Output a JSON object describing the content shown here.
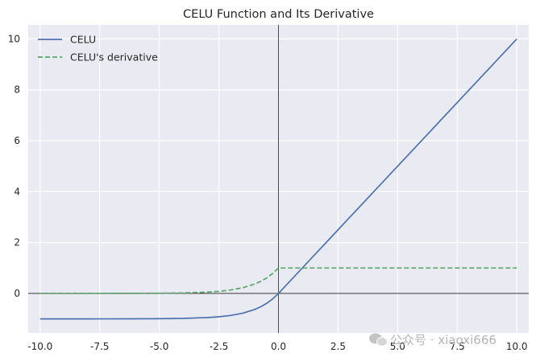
{
  "chart_data": {
    "type": "line",
    "title": "CELU Function and Its Derivative",
    "xlabel": "",
    "ylabel": "",
    "xlim": [
      -10.5,
      10.5
    ],
    "ylim": [
      -1.55,
      10.55
    ],
    "x_ticks": [
      -10.0,
      -7.5,
      -5.0,
      -2.5,
      0.0,
      2.5,
      5.0,
      7.5,
      10.0
    ],
    "x_tick_labels": [
      "-10.0",
      "-7.5",
      "-5.0",
      "-2.5",
      "0.0",
      "2.5",
      "5.0",
      "7.5",
      "10.0"
    ],
    "y_ticks": [
      0,
      2,
      4,
      6,
      8,
      10
    ],
    "y_tick_labels": [
      "0",
      "2",
      "4",
      "6",
      "8",
      "10"
    ],
    "grid": true,
    "axhline": 0,
    "axvline": 0,
    "legend_position": "top-left",
    "x": [
      -10,
      -9,
      -8,
      -7,
      -6,
      -5,
      -4,
      -3,
      -2.5,
      -2,
      -1.5,
      -1,
      -0.75,
      -0.5,
      -0.25,
      0,
      1,
      2,
      3,
      4,
      5,
      6,
      7,
      8,
      9,
      10
    ],
    "series": [
      {
        "name": "CELU",
        "color": "#4c72b0",
        "style": "solid",
        "values": [
          -1.0,
          -1.0,
          -1.0,
          -0.999,
          -0.998,
          -0.993,
          -0.982,
          -0.95,
          -0.918,
          -0.865,
          -0.777,
          -0.632,
          -0.528,
          -0.393,
          -0.221,
          0,
          1,
          2,
          3,
          4,
          5,
          6,
          7,
          8,
          9,
          10
        ]
      },
      {
        "name": "CELU's derivative",
        "color": "#55a868",
        "style": "dashed",
        "values": [
          0.0,
          0.0,
          0.0,
          0.001,
          0.002,
          0.007,
          0.018,
          0.05,
          0.082,
          0.135,
          0.223,
          0.368,
          0.472,
          0.607,
          0.779,
          1,
          1,
          1,
          1,
          1,
          1,
          1,
          1,
          1,
          1,
          1
        ]
      }
    ]
  },
  "watermark": {
    "text": "公众号 · xiaoxi666",
    "icon": "wechat-icon"
  }
}
